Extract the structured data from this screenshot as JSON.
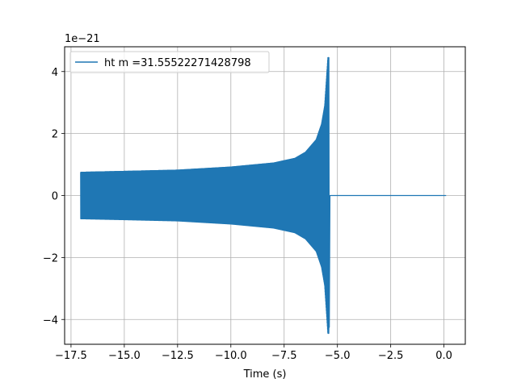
{
  "chart_data": {
    "type": "line",
    "title": "",
    "xlabel": "Time (s)",
    "ylabel": "",
    "y_offset_label": "1e−21",
    "xlim": [
      -17.8,
      1.0
    ],
    "ylim": [
      -4.8,
      4.8
    ],
    "x_ticks": [
      -17.5,
      -15.0,
      -12.5,
      -10.0,
      -7.5,
      -5.0,
      -2.5,
      0.0
    ],
    "x_tick_labels": [
      "−17.5",
      "−15.0",
      "−12.5",
      "−10.0",
      "−7.5",
      "−5.0",
      "−2.5",
      "0.0"
    ],
    "y_ticks": [
      -4,
      -2,
      0,
      2,
      4
    ],
    "y_tick_labels": [
      "−4",
      "−2",
      "0",
      "2",
      "4"
    ],
    "grid": true,
    "legend_position": "top-left",
    "series": [
      {
        "name": "ht m =31.55522271428798",
        "color": "#1f77b4",
        "t_start": -17.05,
        "t_merger": -5.4,
        "t_end": 0.1,
        "amp_start": 0.75,
        "amp_peak_positive": 4.45,
        "amp_peak_negative": -4.25,
        "envelope_samples": [
          {
            "t": -17.05,
            "amp": 0.75
          },
          {
            "t": -15.0,
            "amp": 0.78
          },
          {
            "t": -12.5,
            "amp": 0.82
          },
          {
            "t": -10.0,
            "amp": 0.92
          },
          {
            "t": -8.0,
            "amp": 1.05
          },
          {
            "t": -7.0,
            "amp": 1.2
          },
          {
            "t": -6.5,
            "amp": 1.4
          },
          {
            "t": -6.0,
            "amp": 1.8
          },
          {
            "t": -5.75,
            "amp": 2.3
          },
          {
            "t": -5.6,
            "amp": 2.9
          },
          {
            "t": -5.45,
            "amp": 4.45
          }
        ],
        "post_merger_value": 0.0
      }
    ]
  }
}
